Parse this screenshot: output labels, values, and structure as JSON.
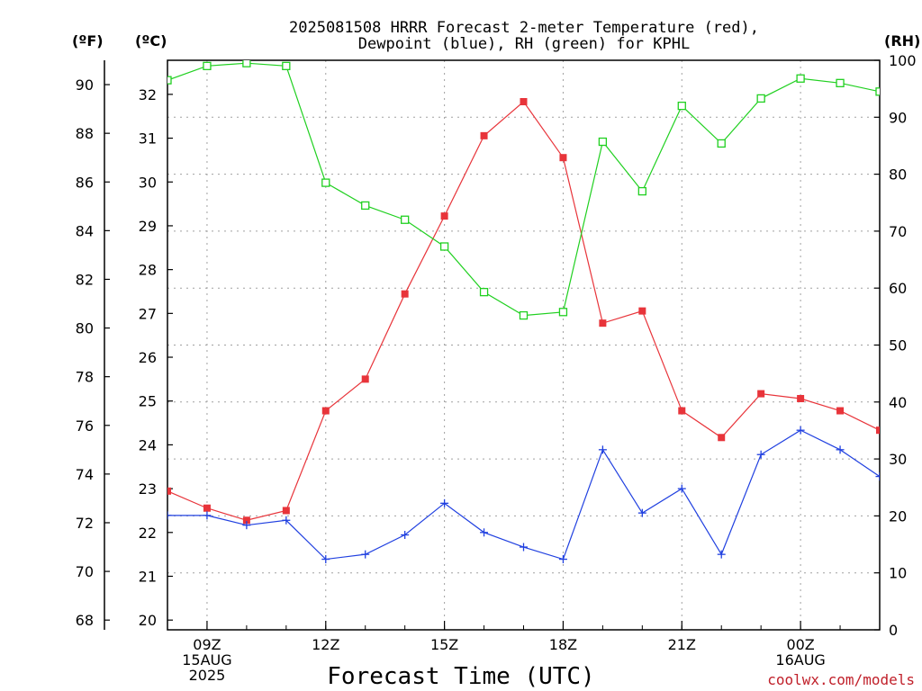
{
  "chart_data": {
    "type": "line",
    "title": [
      "2025081508 HRRR Forecast 2-meter Temperature (red),",
      "Dewpoint (blue), RH (green) for KPHL"
    ],
    "xlabel": "Forecast Time (UTC)",
    "credit": "coolwx.com/models",
    "units": {
      "left_f": "(ºF)",
      "left_c": "(ºC)",
      "right": "(RH)"
    },
    "x_hours": [
      8,
      9,
      10,
      11,
      12,
      13,
      14,
      15,
      16,
      17,
      18,
      19,
      20,
      21,
      22,
      23,
      24,
      25,
      26
    ],
    "x_ticks": [
      {
        "hour": 9,
        "lines": [
          "09Z",
          "15AUG",
          "2025"
        ]
      },
      {
        "hour": 12,
        "lines": [
          "12Z"
        ]
      },
      {
        "hour": 15,
        "lines": [
          "15Z"
        ]
      },
      {
        "hour": 18,
        "lines": [
          "18Z"
        ]
      },
      {
        "hour": 21,
        "lines": [
          "21Z"
        ]
      },
      {
        "hour": 24,
        "lines": [
          "00Z",
          "16AUG"
        ]
      }
    ],
    "xlim": [
      8,
      26
    ],
    "y_f": {
      "range": [
        67.6,
        91.0
      ],
      "ticks": [
        68,
        70,
        72,
        74,
        76,
        78,
        80,
        82,
        84,
        86,
        88,
        90
      ]
    },
    "y_c": {
      "ticks": [
        20,
        21,
        22,
        23,
        24,
        25,
        26,
        27,
        28,
        29,
        30,
        31,
        32
      ]
    },
    "y_rh": {
      "range": [
        0,
        100
      ],
      "ticks": [
        0,
        10,
        20,
        30,
        40,
        50,
        60,
        70,
        80,
        90,
        100
      ]
    },
    "series": [
      {
        "name": "Temperature",
        "color": "#e8343a",
        "marker": "filled-square",
        "axis": "F",
        "values": [
          73.3,
          72.6,
          72.1,
          72.5,
          76.6,
          77.9,
          81.4,
          84.6,
          87.9,
          89.3,
          87.0,
          80.2,
          80.7,
          76.6,
          75.5,
          77.3,
          77.1,
          76.6,
          75.8
        ]
      },
      {
        "name": "Dewpoint",
        "color": "#2040e0",
        "marker": "plus",
        "axis": "F",
        "values": [
          72.3,
          72.3,
          71.9,
          72.1,
          70.5,
          70.7,
          71.5,
          72.8,
          71.6,
          71.0,
          70.5,
          75.0,
          72.4,
          73.4,
          70.7,
          74.8,
          75.8,
          75.0,
          73.9
        ]
      },
      {
        "name": "RH",
        "color": "#20d020",
        "marker": "open-square",
        "axis": "RH",
        "values": [
          96.5,
          99,
          99.5,
          99,
          78.5,
          74.5,
          72,
          67.3,
          59.3,
          55.2,
          55.8,
          85.7,
          77,
          92,
          85.4,
          93.3,
          96.8,
          96,
          94.5
        ]
      }
    ]
  }
}
